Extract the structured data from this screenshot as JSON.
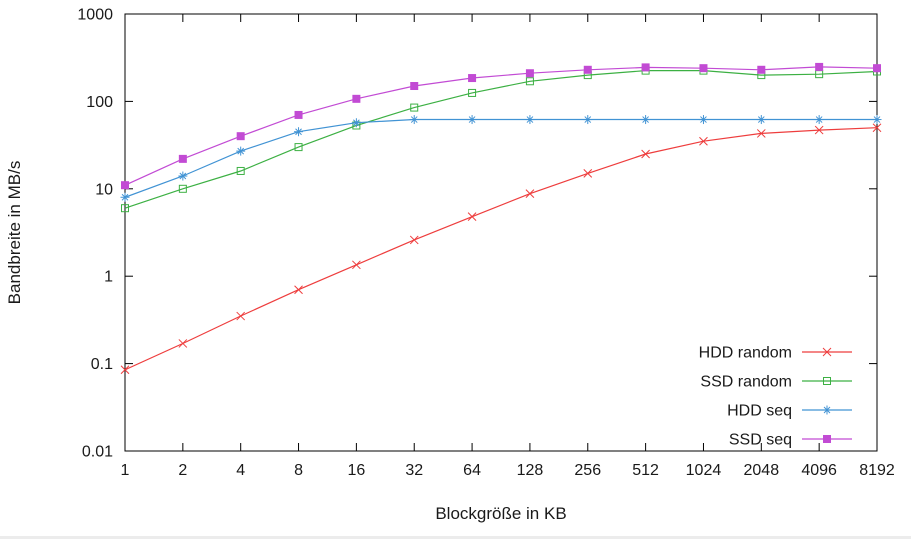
{
  "page": {
    "background": "#ffffff"
  },
  "chart_data": {
    "type": "line",
    "title": "",
    "xlabel": "Blockgröße in KB",
    "ylabel": "Bandbreite in MB/s",
    "xscale": "log2",
    "yscale": "log10",
    "xlim": [
      1,
      8192
    ],
    "ylim": [
      0.01,
      1000
    ],
    "grid": false,
    "legend_position": "inside-bottom-right",
    "x": [
      1,
      2,
      4,
      8,
      16,
      32,
      64,
      128,
      256,
      512,
      1024,
      2048,
      4096,
      8192
    ],
    "xtick_labels": [
      "1",
      "2",
      "4",
      "8",
      "16",
      "32",
      "64",
      "128",
      "256",
      "512",
      "1024",
      "2048",
      "4096",
      "8192"
    ],
    "ytick_values": [
      0.01,
      0.1,
      1,
      10,
      100,
      1000
    ],
    "ytick_labels": [
      "0.01",
      "0.1",
      "1",
      "10",
      "100",
      "1000"
    ],
    "series": [
      {
        "name": "HDD random",
        "color": "#ee3d3d",
        "marker": "cross",
        "values": [
          0.085,
          0.17,
          0.35,
          0.7,
          1.35,
          2.6,
          4.8,
          8.8,
          15,
          25,
          35,
          43,
          47,
          50
        ]
      },
      {
        "name": "SSD random",
        "color": "#3cb043",
        "marker": "open-square",
        "values": [
          6,
          10,
          16,
          30,
          53,
          85,
          125,
          170,
          200,
          225,
          225,
          200,
          205,
          220
        ]
      },
      {
        "name": "HDD seq",
        "color": "#4193d4",
        "marker": "asterisk",
        "values": [
          8,
          14,
          27,
          45,
          57,
          62,
          62,
          62,
          62,
          62,
          62,
          62,
          62,
          62
        ]
      },
      {
        "name": "SSD seq",
        "color": "#c24bd4",
        "marker": "filled-square",
        "values": [
          11,
          22,
          40,
          70,
          107,
          150,
          185,
          210,
          230,
          245,
          240,
          230,
          248,
          240
        ]
      }
    ]
  }
}
